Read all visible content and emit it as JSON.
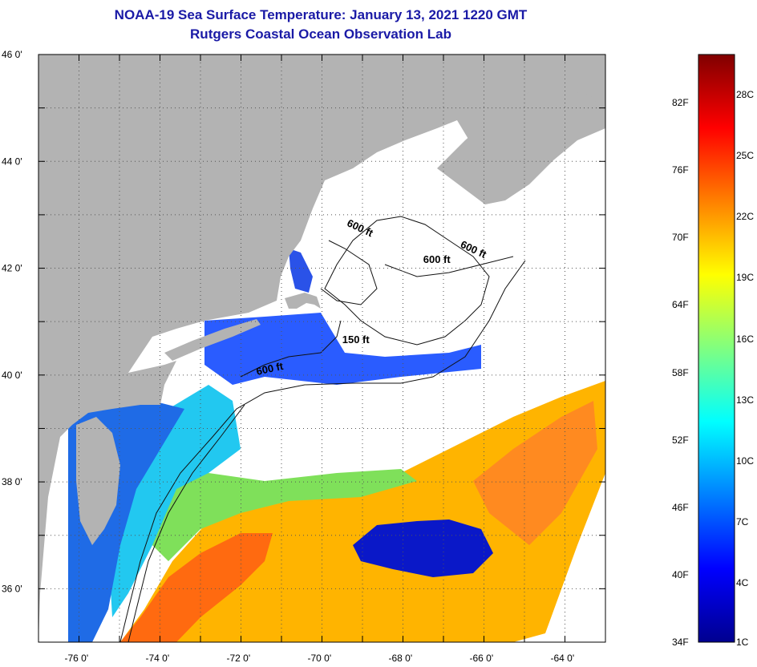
{
  "title": {
    "line1": "NOAA-19 Sea Surface Temperature:  January 13, 2021 1220 GMT",
    "line2": "Rutgers Coastal Ocean Observation Lab"
  },
  "map": {
    "lon_range": [
      -77,
      -63
    ],
    "lat_range": [
      35,
      46
    ],
    "lat_ticks": [
      {
        "value": 46,
        "label": "46 0'"
      },
      {
        "value": 44,
        "label": "44 0'"
      },
      {
        "value": 42,
        "label": "42 0'"
      },
      {
        "value": 40,
        "label": "40 0'"
      },
      {
        "value": 38,
        "label": "38 0'"
      },
      {
        "value": 36,
        "label": "36 0'"
      }
    ],
    "lon_ticks": [
      {
        "value": -76,
        "label": "-76 0'"
      },
      {
        "value": -74,
        "label": "-74 0'"
      },
      {
        "value": -72,
        "label": "-72 0'"
      },
      {
        "value": -70,
        "label": "-70 0'"
      },
      {
        "value": -68,
        "label": "-68 0'"
      },
      {
        "value": -66,
        "label": "-66 0'"
      },
      {
        "value": -64,
        "label": "-64 0'"
      }
    ],
    "isobath_labels": [
      {
        "text": "600 ft",
        "lon": -69.4,
        "lat": 42.8
      },
      {
        "text": "600 ft",
        "lon": -66.6,
        "lat": 42.4
      },
      {
        "text": "600 ft",
        "lon": -67.5,
        "lat": 42.1
      },
      {
        "text": "150 ft",
        "lon": -69.5,
        "lat": 40.6
      },
      {
        "text": "600 ft",
        "lon": -71.6,
        "lat": 40.0
      }
    ],
    "colors": {
      "land": "#b3b3b3",
      "cloud": "#ffffff",
      "grid": "#555555"
    }
  },
  "colorbar": {
    "fahrenheit_labels": [
      "82F",
      "76F",
      "70F",
      "64F",
      "58F",
      "52F",
      "46F",
      "40F",
      "34F"
    ],
    "celsius_labels": [
      "28C",
      "25C",
      "22C",
      "19C",
      "16C",
      "13C",
      "10C",
      "7C",
      "4C",
      "1C"
    ],
    "colors": [
      "#00008f",
      "#0000ff",
      "#0080ff",
      "#00ffff",
      "#80ff80",
      "#ffff00",
      "#ff8000",
      "#ff0000",
      "#800000"
    ]
  }
}
